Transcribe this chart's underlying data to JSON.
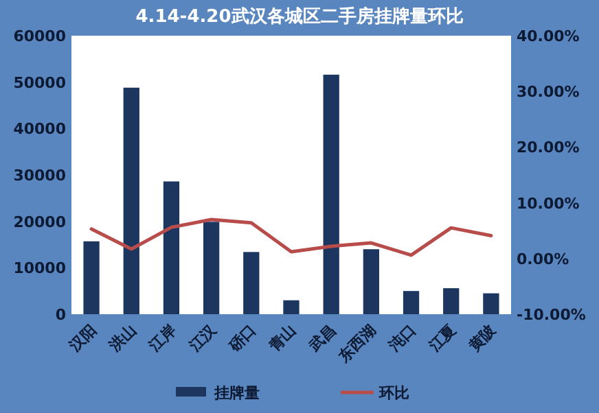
{
  "chart_data": {
    "type": "bar",
    "title": "4.14-4.20武汉各城区二手房挂牌量环比",
    "categories": [
      "汉阳",
      "洪山",
      "江岸",
      "江汉",
      "硚口",
      "青山",
      "武昌",
      "东西湖",
      "沌口",
      "江夏",
      "黄陂"
    ],
    "series": [
      {
        "name": "挂牌量",
        "color": "#1c3660",
        "values": [
          15700,
          48800,
          28600,
          19900,
          13400,
          3000,
          51600,
          14000,
          5000,
          5600,
          4500
        ]
      },
      {
        "name": "环比",
        "type": "line",
        "axis": "y2",
        "color": "#b84c4a",
        "values": [
          5.3,
          1.7,
          5.6,
          7.0,
          6.4,
          1.2,
          2.2,
          2.8,
          0.6,
          5.5,
          4.1
        ]
      }
    ],
    "ylim": [
      0,
      60000
    ],
    "yticks": [
      0,
      10000,
      20000,
      30000,
      40000,
      50000,
      60000
    ],
    "y2lim": [
      -10,
      40
    ],
    "y2ticks": [
      {
        "value": -10,
        "label": "-10.00%"
      },
      {
        "value": 0,
        "label": "0.00%"
      },
      {
        "value": 10,
        "label": "10.00%"
      },
      {
        "value": 20,
        "label": "20.00%"
      },
      {
        "value": 30,
        "label": "30.00%"
      },
      {
        "value": 40,
        "label": "40.00%"
      }
    ],
    "grid": false,
    "legend": "bottom",
    "marker": "none",
    "line_style": "solid"
  }
}
